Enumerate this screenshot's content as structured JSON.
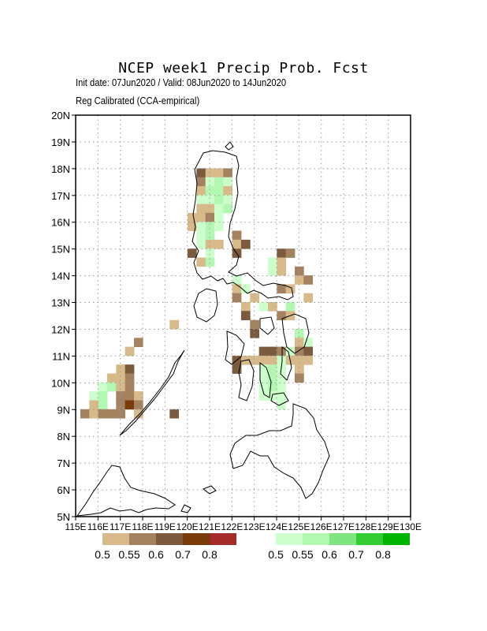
{
  "title": "NCEP week1 Precip Prob. Fcst",
  "subtitle_dates": "Init date: 07Jun2020 / Valid: 08Jun2020 to 14Jun2020",
  "subtitle_method": "Reg Calibrated (CCA-empirical)",
  "lat_labels": [
    "20N",
    "19N",
    "18N",
    "17N",
    "16N",
    "15N",
    "14N",
    "13N",
    "12N",
    "11N",
    "10N",
    "9N",
    "8N",
    "7N",
    "6N",
    "5N"
  ],
  "lon_labels": [
    "115E",
    "116E",
    "117E",
    "118E",
    "119E",
    "120E",
    "121E",
    "122E",
    "123E",
    "124E",
    "125E",
    "126E",
    "127E",
    "128E",
    "129E",
    "130E"
  ],
  "colors": {
    "dry": [
      "#d8b98a",
      "#a4825f",
      "#7b5a3e",
      "#7a3b0a",
      "#a52a2a"
    ],
    "wet": [
      "#ccffcc",
      "#b2f7b2",
      "#7fe57f",
      "#33cc33",
      "#00b400"
    ],
    "coast": "#000000",
    "grid": "#999999"
  },
  "legend": {
    "dry_labels": [
      "0.5",
      "0.55",
      "0.6",
      "0.7",
      "0.8"
    ],
    "wet_labels": [
      "0.5",
      "0.55",
      "0.6",
      "0.7",
      "0.8"
    ]
  }
}
